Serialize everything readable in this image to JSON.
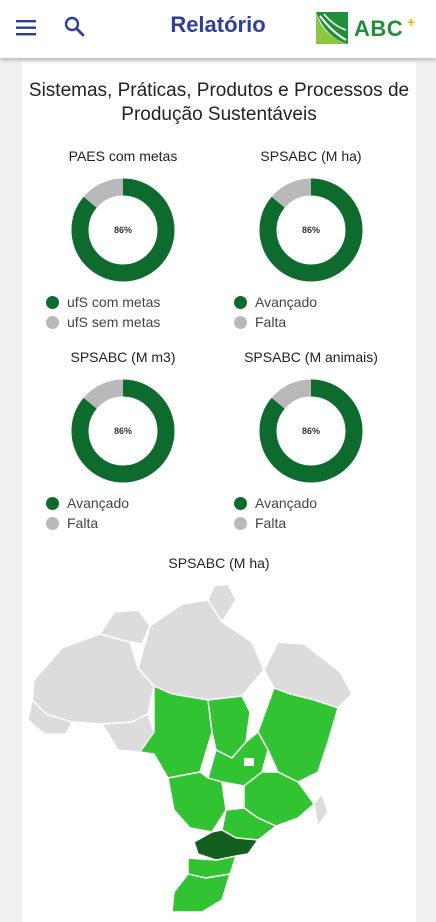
{
  "header": {
    "title": "Relatório",
    "logo_text": "ABC",
    "logo_plus": "+",
    "menu_icon": "menu-icon",
    "search_icon": "search-icon"
  },
  "report": {
    "heading": "Sistemas, Práticas, Produtos e Processos de Produção Sustentáveis",
    "colors": {
      "achieved": "#0d6b2e",
      "remaining": "#b9b9b9",
      "map_highlight": "#31c331",
      "map_dark": "#155f1e",
      "map_neutral": "#dcdcdc"
    },
    "charts": [
      {
        "title": "PAES com metas",
        "center_label": "86%",
        "value_pct": 86,
        "legend": [
          "ufS com metas",
          "ufS sem metas"
        ]
      },
      {
        "title": "SPSABC (M ha)",
        "center_label": "86%",
        "value_pct": 86,
        "legend": [
          "Avançado",
          "Falta"
        ]
      },
      {
        "title": "SPSABC (M m3)",
        "center_label": "86%",
        "value_pct": 86,
        "legend": [
          "Avançado",
          "Falta"
        ]
      },
      {
        "title": "SPSABC (M animais)",
        "center_label": "86%",
        "value_pct": 86,
        "legend": [
          "Avançado",
          "Falta"
        ]
      }
    ],
    "map_title": "SPSABC (M ha)"
  }
}
